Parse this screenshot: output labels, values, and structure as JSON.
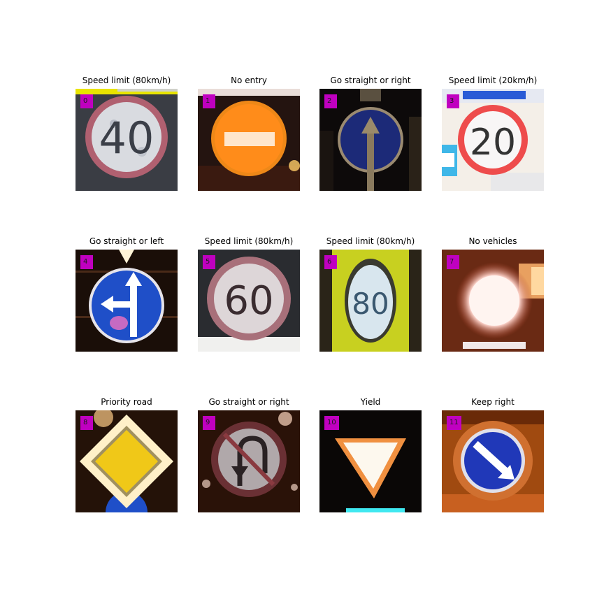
{
  "panels": [
    {
      "index": "0",
      "title": "Speed limit (80km/h)",
      "sign_text": "40"
    },
    {
      "index": "1",
      "title": "No entry"
    },
    {
      "index": "2",
      "title": "Go straight or right"
    },
    {
      "index": "3",
      "title": "Speed limit (20km/h)",
      "sign_text": "20"
    },
    {
      "index": "4",
      "title": "Go straight or left"
    },
    {
      "index": "5",
      "title": "Speed limit (80km/h)",
      "sign_text": "60"
    },
    {
      "index": "6",
      "title": "Speed limit (80km/h)",
      "sign_text": "80"
    },
    {
      "index": "7",
      "title": "No vehicles"
    },
    {
      "index": "8",
      "title": "Priority road"
    },
    {
      "index": "9",
      "title": "Go straight or right"
    },
    {
      "index": "10",
      "title": "Yield"
    },
    {
      "index": "11",
      "title": "Keep right"
    }
  ],
  "colors": {
    "index_badge": "#c000c0"
  }
}
